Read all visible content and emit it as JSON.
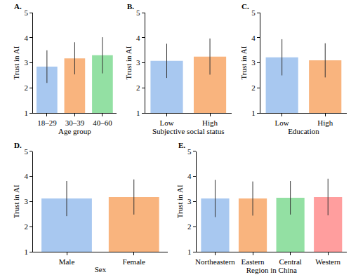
{
  "chart_data": [
    {
      "type": "bar",
      "title": "A.",
      "x_label": "Age group",
      "y_label": "Trust in AI",
      "categories": [
        "18–29",
        "30–39",
        "40–60"
      ],
      "values": [
        2.85,
        3.18,
        3.3
      ],
      "errors": [
        0.65,
        0.64,
        0.72
      ],
      "colors": [
        "#a8c8f0",
        "#f9b47e",
        "#93e0a3"
      ],
      "ylim": [
        1,
        5
      ],
      "yticks": [
        1,
        2,
        3,
        4,
        5
      ],
      "grid": false
    },
    {
      "type": "bar",
      "title": "B.",
      "x_label": "Subjective social status",
      "y_label": "Trust in AI",
      "categories": [
        "Low",
        "High"
      ],
      "values": [
        3.08,
        3.25
      ],
      "errors": [
        0.68,
        0.72
      ],
      "colors": [
        "#a8c8f0",
        "#f9b47e"
      ],
      "ylim": [
        1,
        5
      ],
      "yticks": [
        1,
        2,
        3,
        4,
        5
      ],
      "grid": false
    },
    {
      "type": "bar",
      "title": "C.",
      "x_label": "Education",
      "y_label": "Trust in AI",
      "categories": [
        "Low",
        "High"
      ],
      "values": [
        3.22,
        3.1
      ],
      "errors": [
        0.72,
        0.68
      ],
      "colors": [
        "#a8c8f0",
        "#f9b47e"
      ],
      "ylim": [
        1,
        5
      ],
      "yticks": [
        1,
        2,
        3,
        4,
        5
      ],
      "grid": false
    },
    {
      "type": "bar",
      "title": "D.",
      "x_label": "Sex",
      "y_label": "Trust in AI",
      "categories": [
        "Male",
        "Female"
      ],
      "values": [
        3.12,
        3.18
      ],
      "errors": [
        0.7,
        0.7
      ],
      "colors": [
        "#a8c8f0",
        "#f9b47e"
      ],
      "ylim": [
        1,
        5
      ],
      "yticks": [
        1,
        2,
        3,
        4,
        5
      ],
      "grid": false
    },
    {
      "type": "bar",
      "title": "E.",
      "x_label": "Region in China",
      "y_label": "Trust in AI",
      "categories": [
        "Northeastern",
        "Eastern",
        "Central",
        "Western"
      ],
      "values": [
        3.12,
        3.12,
        3.15,
        3.18
      ],
      "errors": [
        0.74,
        0.68,
        0.67,
        0.73
      ],
      "colors": [
        "#a8c8f0",
        "#f9b47e",
        "#93e0a3",
        "#ff9e9e"
      ],
      "ylim": [
        1,
        5
      ],
      "yticks": [
        1,
        2,
        3,
        4,
        5
      ],
      "grid": false
    }
  ]
}
